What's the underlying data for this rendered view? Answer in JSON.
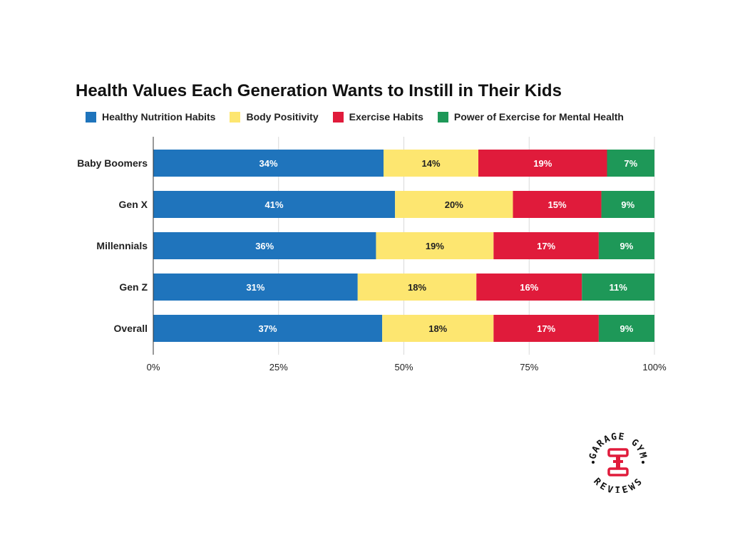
{
  "chart_data": {
    "type": "bar",
    "orientation": "horizontal",
    "stacked": true,
    "title": "Health Values Each Generation Wants to Instill in Their Kids",
    "categories": [
      "Baby Boomers",
      "Gen X",
      "Millennials",
      "Gen Z",
      "Overall"
    ],
    "series": [
      {
        "name": "Healthy Nutrition Habits",
        "color": "#1f74bc",
        "values": [
          34,
          41,
          36,
          31,
          37
        ],
        "labels": [
          "34%",
          "41%",
          "36%",
          "31%",
          "37%"
        ]
      },
      {
        "name": "Body Positivity",
        "color": "#fde670",
        "values": [
          14,
          20,
          19,
          18,
          18
        ],
        "labels": [
          "14%",
          "20%",
          "19%",
          "18%",
          "18%"
        ]
      },
      {
        "name": "Exercise Habits",
        "color": "#e01b3b",
        "values": [
          19,
          15,
          17,
          16,
          17
        ],
        "labels": [
          "19%",
          "15%",
          "17%",
          "16%",
          "17%"
        ]
      },
      {
        "name": "Power of Exercise for Mental Health",
        "color": "#1e9858",
        "values": [
          7,
          9,
          9,
          11,
          9
        ],
        "labels": [
          "7%",
          "9%",
          "9%",
          "11%",
          "9%"
        ]
      }
    ],
    "normalized_to_100_percent": true,
    "xlim": [
      0,
      100
    ],
    "x_ticks": [
      0,
      25,
      50,
      75,
      100
    ],
    "x_tick_labels": [
      "0%",
      "25%",
      "50%",
      "75%",
      "100%"
    ],
    "grid": "vertical",
    "legend": "top"
  },
  "logo": {
    "text_top": "GARAGE GYM",
    "text_bottom": "REVIEWS",
    "accent_color": "#e01b3b",
    "icon": "dumbbell-icon"
  }
}
